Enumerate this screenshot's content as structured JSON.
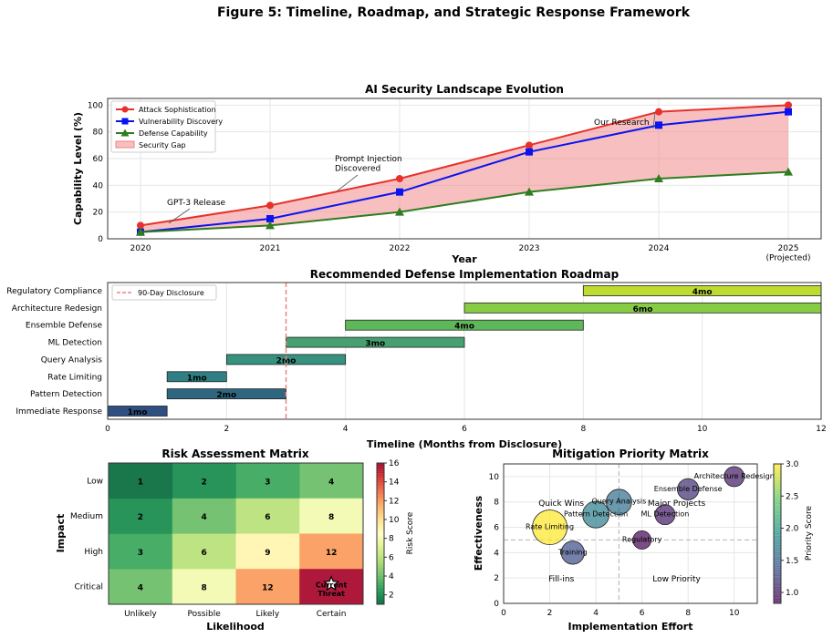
{
  "figure_title": "Figure 5: Timeline, Roadmap, and Strategic Response Framework",
  "chart_data": [
    {
      "type": "line",
      "title": "AI Security Landscape Evolution",
      "xlabel": "Year",
      "ylabel": "Capability Level (%)",
      "x": [
        2020,
        2021,
        2022,
        2023,
        2024,
        2025
      ],
      "x_tick_labels": [
        "2020",
        "2021",
        "2022",
        "2023",
        "2024",
        "2025\n(Projected)"
      ],
      "ylim": [
        0,
        105
      ],
      "y_ticks": [
        0,
        20,
        40,
        60,
        80,
        100
      ],
      "grid": true,
      "legend_placement": "upper-left",
      "series": [
        {
          "name": "Attack Sophistication",
          "values": [
            10,
            25,
            45,
            70,
            95,
            100
          ],
          "color": "#e8312a",
          "marker": "circle"
        },
        {
          "name": "Vulnerability Discovery",
          "values": [
            5,
            15,
            35,
            65,
            85,
            95
          ],
          "color": "#0a14f0",
          "marker": "square"
        },
        {
          "name": "Defense Capability",
          "values": [
            5,
            10,
            20,
            35,
            45,
            50
          ],
          "color": "#2e7d1f",
          "marker": "triangle"
        }
      ],
      "fill": {
        "name": "Security Gap",
        "between": [
          "Attack Sophistication",
          "Defense Capability"
        ],
        "color": "#f08080"
      },
      "annotations": [
        {
          "text": "GPT-3 Release",
          "x": 2020.2,
          "y": 10
        },
        {
          "text": "Prompt Injection\nDiscovered",
          "x": 2021.5,
          "y": 35
        },
        {
          "text": "Our Research",
          "x": 2023.95,
          "y": 94
        }
      ]
    },
    {
      "type": "bar",
      "orientation": "horizontal",
      "title": "Recommended Defense Implementation Roadmap",
      "xlabel": "Timeline (Months from Disclosure)",
      "xlim": [
        0,
        12
      ],
      "x_ticks": [
        0,
        2,
        4,
        6,
        8,
        10,
        12
      ],
      "grid": true,
      "legend_placement": "upper-left",
      "categories": [
        "Immediate Response",
        "Pattern Detection",
        "Rate Limiting",
        "Query Analysis",
        "ML Detection",
        "Ensemble Defense",
        "Architecture Redesign",
        "Regulatory Compliance"
      ],
      "start": [
        0,
        1,
        1,
        2,
        3,
        4,
        6,
        8
      ],
      "duration": [
        1,
        2,
        1,
        2,
        3,
        4,
        6,
        4
      ],
      "labels": [
        "1mo",
        "2mo",
        "1mo",
        "2mo",
        "3mo",
        "4mo",
        "6mo",
        "4mo"
      ],
      "colors": [
        "#2f4f82",
        "#2f6680",
        "#2f8085",
        "#36917f",
        "#46a070",
        "#5eb85a",
        "#86cc45",
        "#bedb30"
      ],
      "reference_line": {
        "name": "90-Day Disclosure",
        "x": 3,
        "color": "#f08080"
      }
    },
    {
      "type": "heatmap",
      "title": "Risk Assessment Matrix",
      "xlabel": "Likelihood",
      "ylabel": "Impact",
      "x_categories": [
        "Unlikely",
        "Possible",
        "Likely",
        "Certain"
      ],
      "y_categories": [
        "Low",
        "Medium",
        "High",
        "Critical"
      ],
      "values": [
        [
          1,
          2,
          3,
          4
        ],
        [
          2,
          4,
          6,
          8
        ],
        [
          3,
          6,
          9,
          12
        ],
        [
          4,
          8,
          12,
          16
        ]
      ],
      "colorbar": {
        "label": "Risk Score",
        "range": [
          1,
          16
        ],
        "ticks": [
          2,
          4,
          6,
          8,
          10,
          12,
          14,
          16
        ],
        "colormap": "RdYlGn_r"
      },
      "highlight": {
        "row": 3,
        "col": 3,
        "text": "Current\nThreat",
        "icon": "star-icon"
      }
    },
    {
      "type": "scatter",
      "title": "Mitigation Priority Matrix",
      "xlabel": "Implementation Effort",
      "ylabel": "Effectiveness",
      "xlim": [
        0,
        11
      ],
      "ylim": [
        0,
        11
      ],
      "x_ticks": [
        0,
        2,
        4,
        6,
        8,
        10
      ],
      "y_ticks": [
        0,
        2,
        4,
        6,
        8,
        10
      ],
      "grid": true,
      "points": [
        {
          "label": "Rate Limiting",
          "x": 2,
          "y": 6,
          "priority": 3.0
        },
        {
          "label": "Training",
          "x": 3,
          "y": 4,
          "priority": 1.33
        },
        {
          "label": "Pattern Detection",
          "x": 4,
          "y": 7,
          "priority": 1.75
        },
        {
          "label": "Query Analysis",
          "x": 5,
          "y": 8,
          "priority": 1.6
        },
        {
          "label": "Regulatory",
          "x": 6,
          "y": 5,
          "priority": 0.83
        },
        {
          "label": "ML Detection",
          "x": 7,
          "y": 7,
          "priority": 1.0
        },
        {
          "label": "Ensemble Defense",
          "x": 8,
          "y": 9,
          "priority": 1.125
        },
        {
          "label": "Architecture Redesign",
          "x": 10,
          "y": 10,
          "priority": 1.0
        }
      ],
      "quadrants": [
        {
          "text": "Quick Wins",
          "x": 2.5,
          "y": 8.5
        },
        {
          "text": "Major Projects",
          "x": 7.5,
          "y": 8.5
        },
        {
          "text": "Fill-ins",
          "x": 2.5,
          "y": 2.5
        },
        {
          "text": "Low Priority",
          "x": 7.5,
          "y": 2.5
        }
      ],
      "dividers": {
        "x": 5,
        "y": 5
      },
      "colorbar": {
        "label": "Priority Score",
        "range": [
          0.83,
          3.0
        ],
        "ticks": [
          1.0,
          1.5,
          2.0,
          2.5,
          3.0
        ],
        "colormap": "viridis"
      }
    }
  ]
}
